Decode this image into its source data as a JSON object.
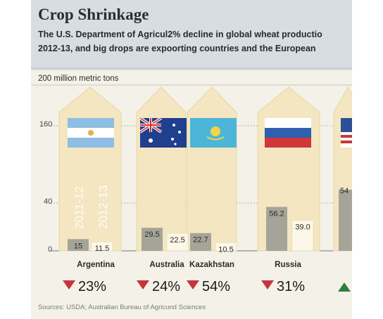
{
  "title": "Crop Shrinkage",
  "subtitle_line1": "The U.S. Department of Agricul2% decline in global wheat productio",
  "subtitle_line2": "2012-13, and big drops are expoorting countries and the European",
  "units_label": "200 million metric tons",
  "source": "Sources: USDA; Australian Bureau of Agricund Sciences",
  "colors": {
    "bar_2011_12": "#a5a498",
    "bar_2012_13": "#fcf7e6",
    "silo": "#f3e6c1",
    "decline": "#c7353c",
    "increase": "#2f7d3f",
    "panel_bg": "#f4f1e8"
  },
  "chart_data": {
    "type": "bar",
    "title": "Crop Shrinkage",
    "ylabel": "200 million metric tons",
    "xlabel": "",
    "ylim": [
      0,
      200
    ],
    "y_ticks": [
      "0",
      "40",
      "160"
    ],
    "categories": [
      "Argentina",
      "Australia",
      "Kazakhstan",
      "Russia"
    ],
    "series": [
      {
        "name": "2011-12",
        "values": [
          15,
          29.5,
          22.7,
          56.2
        ]
      },
      {
        "name": "2012-13",
        "values": [
          11.5,
          22.5,
          10.5,
          39.0
        ]
      }
    ],
    "data_labels": [
      [
        "15",
        "29.5",
        "22.7",
        "56.2"
      ],
      [
        "11.5",
        "22.5",
        "10.5",
        "39.0"
      ]
    ],
    "changes": [
      "23%",
      "24%",
      "54%",
      "31%"
    ],
    "change_direction": [
      "down",
      "down",
      "down",
      "down"
    ],
    "partial_label": "54",
    "grid": true,
    "legend": "inside-first-bar"
  }
}
